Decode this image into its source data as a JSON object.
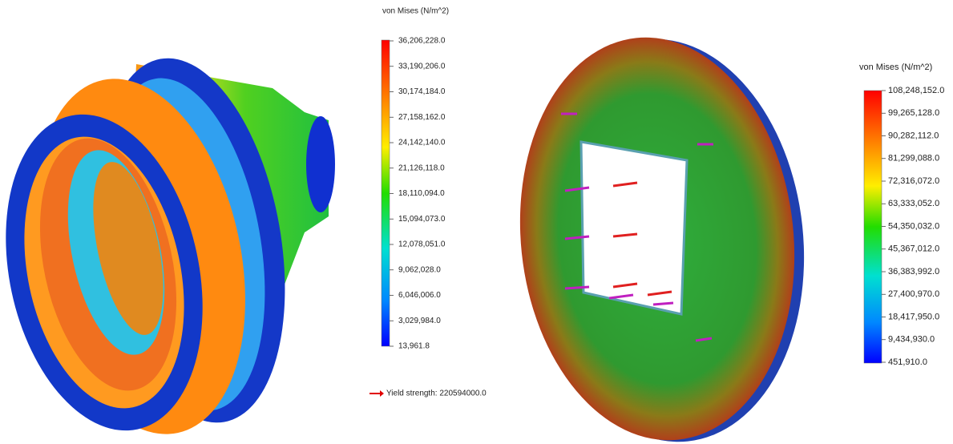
{
  "left_legend": {
    "title": "von Mises (N/m^2)",
    "labels": [
      "36,206,228.0",
      "33,190,206.0",
      "30,174,184.0",
      "27,158,162.0",
      "24,142,140.0",
      "21,126,118.0",
      "18,110,094.0",
      "15,094,073.0",
      "12,078,051.0",
      "9,062,028.0",
      "6,046,006.0",
      "3,029,984.0",
      "13,961.8"
    ],
    "yield_strength": "Yield strength: 220594000.0"
  },
  "right_legend": {
    "title": "von Mises (N/m^2)",
    "labels": [
      "108,248,152.0",
      "99,265,128.0",
      "90,282,112.0",
      "81,299,088.0",
      "72,316,072.0",
      "63,333,052.0",
      "54,350,032.0",
      "45,367,012.0",
      "36,383,992.0",
      "27,400,970.0",
      "18,417,950.0",
      "9,434,930.0",
      "451,910.0"
    ]
  }
}
